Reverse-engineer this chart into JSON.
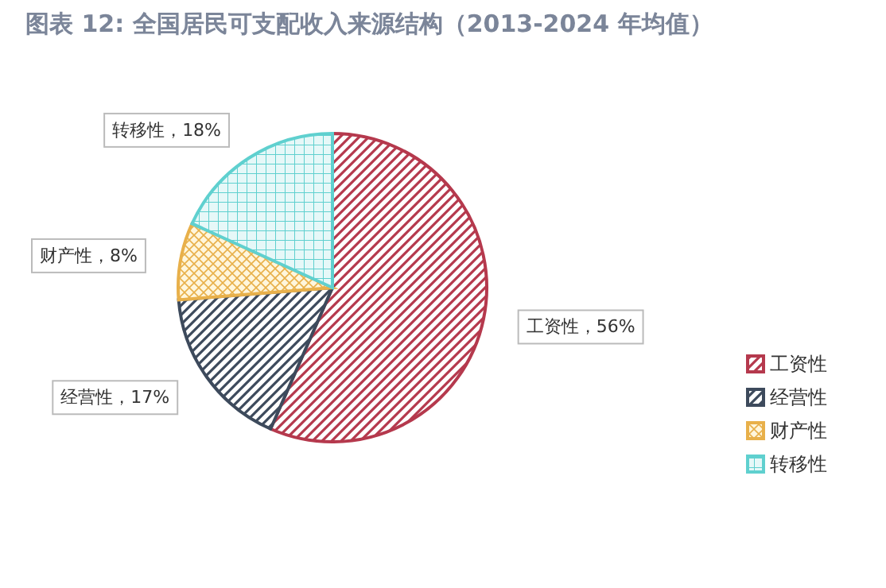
{
  "chart_data": {
    "type": "pie",
    "title": "图表 12: 全国居民可支配收入来源结构（2013-2024 年均值）",
    "categories": [
      "工资性",
      "经营性",
      "财产性",
      "转移性"
    ],
    "values": [
      56,
      17,
      8,
      18
    ],
    "colors": [
      "#b5394d",
      "#3d4a5c",
      "#e8b04a",
      "#5fd0cf"
    ],
    "value_labels": [
      "工资性，56%",
      "经营性，17%",
      "财产性，8%",
      "转移性，18%"
    ],
    "legend": "right"
  }
}
